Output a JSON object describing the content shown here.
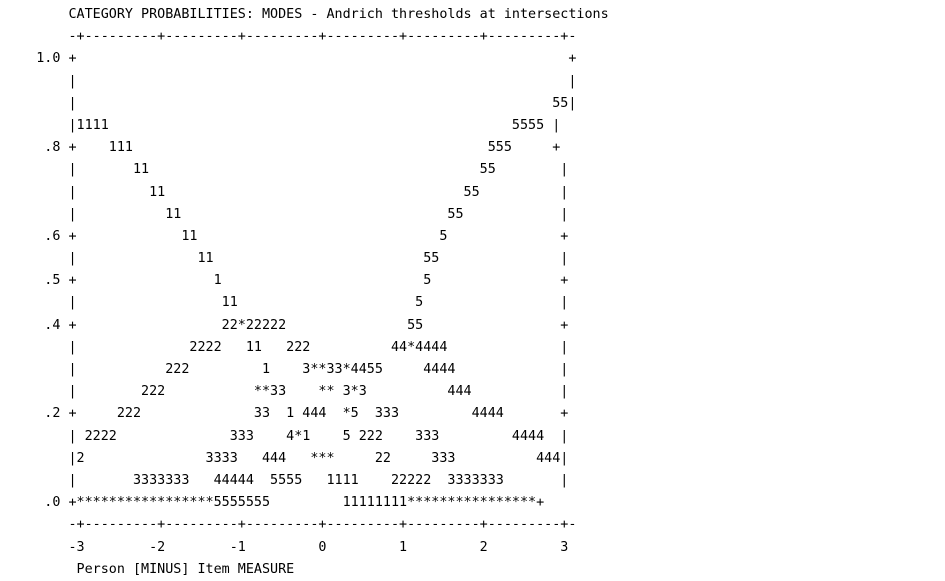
{
  "chart_data": {
    "type": "line",
    "title": "CATEGORY PROBABILITIES: MODES - Andrich thresholds at intersections",
    "xlabel": "Person [MINUS] Item MEASURE",
    "ylabel": "",
    "xlim": [
      -3,
      3
    ],
    "ylim": [
      0,
      1
    ],
    "x_ticks": [
      "-3",
      "-2",
      "-1",
      "0",
      "1",
      "2",
      "3"
    ],
    "y_ticks": [
      "1.0",
      ".8",
      ".6",
      ".5",
      ".4",
      ".2",
      ".0"
    ],
    "grid": false,
    "legend": "none",
    "series": [
      {
        "name": "1",
        "x": [
          -3,
          -2.5,
          -2,
          -1.5,
          -1,
          -0.5,
          0,
          0.5,
          1
        ],
        "values": [
          0.81,
          0.76,
          0.68,
          0.55,
          0.27,
          0.13,
          0.02,
          0.0,
          0.0
        ]
      },
      {
        "name": "2",
        "x": [
          -3,
          -2.5,
          -2,
          -1.5,
          -1,
          -0.5,
          0,
          0.5,
          1
        ],
        "values": [
          0.12,
          0.16,
          0.23,
          0.31,
          0.4,
          0.34,
          0.26,
          0.12,
          0.02
        ]
      },
      {
        "name": "3",
        "x": [
          -2,
          -1.5,
          -1,
          -0.5,
          0,
          0.5,
          1,
          1.5,
          2
        ],
        "values": [
          0.02,
          0.06,
          0.12,
          0.21,
          0.27,
          0.3,
          0.18,
          0.11,
          0.03
        ]
      },
      {
        "name": "4",
        "x": [
          -1,
          -0.5,
          0,
          0.5,
          1,
          1.5,
          2,
          2.5,
          3
        ],
        "values": [
          0.02,
          0.08,
          0.17,
          0.26,
          0.38,
          0.32,
          0.24,
          0.2,
          0.12
        ]
      },
      {
        "name": "5",
        "x": [
          -0.5,
          0,
          0.5,
          1,
          1.5,
          2,
          2.5,
          3
        ],
        "values": [
          0.02,
          0.06,
          0.17,
          0.4,
          0.6,
          0.76,
          0.83,
          0.9
        ]
      }
    ],
    "ascii_lines": [
      "        CATEGORY PROBABILITIES: MODES - Andrich thresholds at intersections",
      "        -+---------+---------+---------+---------+---------+---------+-",
      "    1.0 +                                                             +",
      "        |                                                             |",
      "        |                                                           55|",
      "        |1111                                                  5555 |",
      "     .8 +    111                                            555     +",
      "        |       11                                         55        |",
      "        |         11                                     55          |",
      "        |           11                                 55            |",
      "     .6 +             11                              5              +",
      "        |               11                          55               |",
      "     .5 +                 1                         5                +",
      "        |                  11                      5                 |",
      "     .4 +                  22*22222               55                 +",
      "        |              2222   11   222          44*4444              |",
      "        |           222         1    3**33*4455     4444             |",
      "        |        222           **33    ** 3*3          444           |",
      "     .2 +     222              33  1 444  *5  333         4444       +",
      "        | 2222              333    4*1    5 222    333         4444  |",
      "        |2               3333   444   ***     22     333          444|",
      "        |       3333333   44444  5555   1111    22222  3333333       |",
      "     .0 +*****************5555555         11111111****************+",
      "        -+---------+---------+---------+---------+---------+---------+-",
      "        -3        -2        -1         0         1         2         3",
      "         Person [MINUS] Item MEASURE"
    ]
  }
}
